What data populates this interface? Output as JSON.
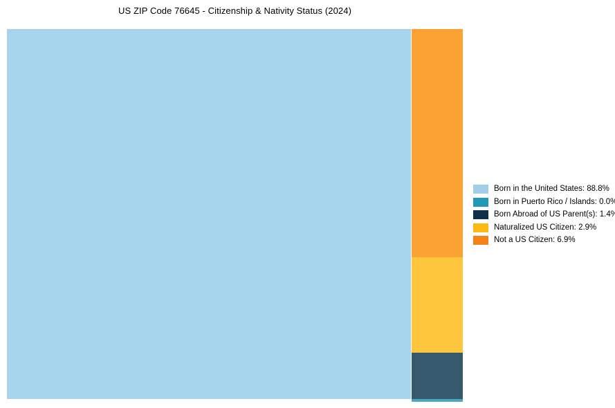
{
  "title": "US ZIP Code 76645 - Citizenship & Nativity Status (2024)",
  "legend": {
    "items": [
      {
        "text": "Born in the United States: 88.8%",
        "color": "#a0cee7"
      },
      {
        "text": "Born in Puerto Rico / Islands: 0.0%",
        "color": "#2398b6"
      },
      {
        "text": "Born Abroad of US Parent(s): 1.4%",
        "color": "#0f3049"
      },
      {
        "text": "Naturalized US Citizen: 2.9%",
        "color": "#fdb813"
      },
      {
        "text": "Not a US Citizen: 6.9%",
        "color": "#f58216"
      }
    ]
  },
  "chart_data": {
    "type": "treemap",
    "title": "US ZIP Code 76645 - Citizenship & Nativity Status (2024)",
    "categories": [
      "Born in the United States",
      "Born in Puerto Rico / Islands",
      "Born Abroad of US Parent(s)",
      "Naturalized US Citizen",
      "Not a US Citizen"
    ],
    "values": [
      88.8,
      0.0,
      1.4,
      2.9,
      6.9
    ],
    "unit": "%",
    "colors": [
      "#a6d4ec",
      "#47a8c0",
      "#36596e",
      "#fec63c",
      "#fba233"
    ],
    "legend_colors": [
      "#a0cee7",
      "#2398b6",
      "#0f3049",
      "#fdb813",
      "#f58216"
    ],
    "legend_position": "right",
    "layout_note": "Largest category fills left area; remaining categories stacked top-to-bottom in right column: Not a US Citizen, Naturalized US Citizen, Born Abroad of US Parent(s), Born in Puerto Rico / Islands (zero-height sliver at bottom)"
  }
}
